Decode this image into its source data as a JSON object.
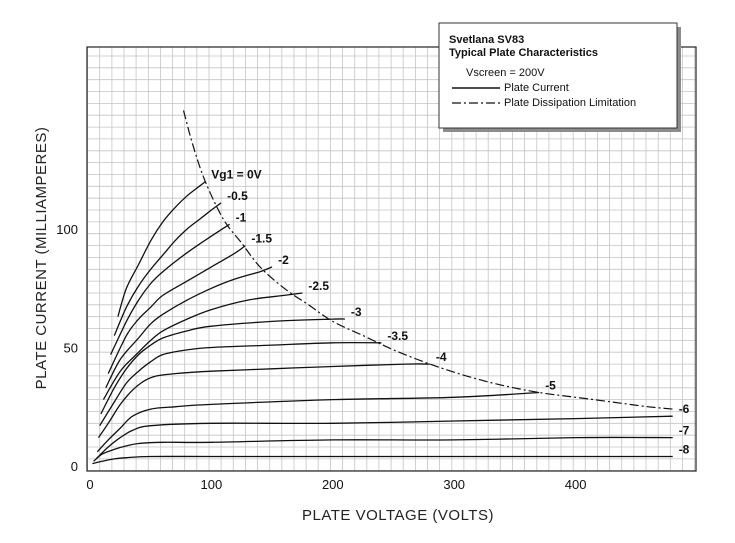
{
  "chart_data": {
    "type": "line",
    "title": "",
    "xlabel": "PLATE VOLTAGE (VOLTS)",
    "ylabel": "PLATE CURRENT (MILLIAMPERES)",
    "xlim": [
      0,
      500
    ],
    "ylim": [
      0,
      175
    ],
    "grid": true,
    "x_ticks": [
      0,
      100,
      200,
      300,
      400
    ],
    "y_ticks": [
      0,
      50,
      100
    ],
    "x_tick_labels": [
      "0",
      "100",
      "200",
      "300",
      "400"
    ],
    "y_tick_labels": [
      "0",
      "50",
      "100"
    ],
    "legend": {
      "placement": "top-right",
      "title_line1": "Svetlana SV83",
      "title_line2": "Typical Plate Characteristics",
      "condition": "Vscreen = 200V",
      "solid_label": "Plate Current",
      "dashdot_label": "Plate Dissipation Limitation"
    },
    "series": [
      {
        "name": "Vg1 = 0V",
        "label": "Vg1 = 0V",
        "x": [
          23,
          30,
          40,
          50,
          60,
          70,
          80,
          90,
          95
        ],
        "y": [
          63,
          75,
          85,
          95,
          103,
          109,
          114,
          118,
          120
        ]
      },
      {
        "name": "-0.5",
        "label": "-0.5",
        "x": [
          20,
          30,
          40,
          50,
          60,
          70,
          80,
          90,
          100,
          108
        ],
        "y": [
          55,
          67,
          76,
          83,
          89,
          95,
          100,
          104,
          108,
          111
        ]
      },
      {
        "name": "-1",
        "label": "-1",
        "x": [
          17,
          30,
          40,
          50,
          60,
          80,
          100,
          115
        ],
        "y": [
          47,
          61,
          70,
          77,
          82,
          90,
          97,
          102
        ]
      },
      {
        "name": "-1.5",
        "label": "-1.5",
        "x": [
          15,
          30,
          40,
          50,
          60,
          80,
          100,
          120,
          128
        ],
        "y": [
          39,
          55,
          62,
          67,
          72,
          78,
          84,
          90,
          93
        ]
      },
      {
        "name": "-2",
        "label": "-2",
        "x": [
          13,
          25,
          40,
          50,
          60,
          80,
          100,
          120,
          140,
          150
        ],
        "y": [
          33,
          45,
          54,
          60,
          64,
          70,
          75,
          79,
          82,
          84
        ]
      },
      {
        "name": "-2.5",
        "label": "-2.5",
        "x": [
          11,
          25,
          40,
          50,
          60,
          80,
          100,
          130,
          160,
          175
        ],
        "y": [
          28,
          40,
          48,
          53,
          57,
          62,
          66,
          70,
          72,
          73
        ]
      },
      {
        "name": "-3",
        "label": "-3",
        "x": [
          9,
          20,
          30,
          40,
          50,
          60,
          80,
          100,
          150,
          200,
          210
        ],
        "y": [
          22,
          33,
          41,
          47,
          51,
          54,
          57,
          59,
          61,
          62,
          62
        ]
      },
      {
        "name": "-3.5",
        "label": "-3.5",
        "x": [
          8,
          20,
          30,
          40,
          50,
          60,
          80,
          100,
          150,
          200,
          240
        ],
        "y": [
          17,
          27,
          35,
          40,
          44,
          47,
          49,
          50,
          51,
          52,
          52
        ]
      },
      {
        "name": "-4",
        "label": "-4",
        "x": [
          7,
          15,
          25,
          35,
          45,
          55,
          70,
          100,
          150,
          200,
          260,
          280
        ],
        "y": [
          12,
          18,
          26,
          32,
          36,
          38,
          39,
          40,
          41,
          42,
          43,
          43
        ]
      },
      {
        "name": "-5",
        "label": "-5",
        "x": [
          6,
          15,
          25,
          35,
          50,
          70,
          100,
          200,
          300,
          370
        ],
        "y": [
          6,
          11,
          16,
          21,
          24,
          25,
          26,
          28,
          29,
          31
        ]
      },
      {
        "name": "-6",
        "label": "-6",
        "x": [
          5,
          15,
          25,
          35,
          50,
          100,
          200,
          300,
          400,
          480
        ],
        "y": [
          3,
          8,
          12,
          15,
          17,
          18,
          18,
          19,
          20,
          21
        ]
      },
      {
        "name": "-7",
        "label": "-7",
        "x": [
          3,
          10,
          20,
          30,
          40,
          60,
          100,
          200,
          300,
          400,
          480
        ],
        "y": [
          2,
          5,
          7,
          8.5,
          9.5,
          10,
          10,
          11,
          11,
          12,
          12
        ]
      },
      {
        "name": "-8",
        "label": "-8",
        "x": [
          2,
          10,
          20,
          30,
          50,
          100,
          200,
          300,
          400,
          480
        ],
        "y": [
          1,
          2,
          3,
          3.5,
          4,
          4,
          4,
          4,
          4,
          4
        ]
      }
    ],
    "dissipation_curve": {
      "style": "dash-dot",
      "x": [
        77,
        85,
        95,
        110,
        125,
        140,
        160,
        180,
        200,
        225,
        250,
        280,
        310,
        340,
        370,
        400,
        430,
        460,
        480
      ],
      "y": [
        150,
        135,
        120,
        104,
        94,
        84,
        75,
        68,
        61,
        55,
        49,
        43,
        38,
        34,
        31,
        29,
        27,
        25,
        24
      ]
    }
  }
}
